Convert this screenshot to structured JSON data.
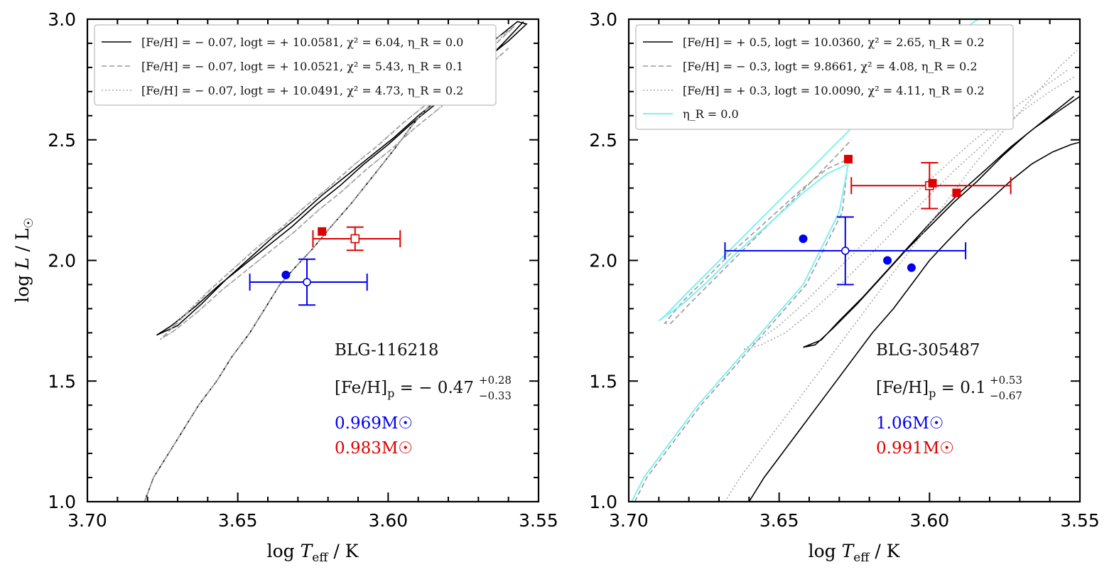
{
  "chart_data": [
    {
      "type": "line",
      "panel": "left",
      "xlabel": "log T_eff / K",
      "ylabel": "log L / L☉",
      "xlim": [
        3.7,
        3.55
      ],
      "ylim": [
        1.0,
        3.0
      ],
      "x_ticks": [
        "3.70",
        "3.65",
        "3.60",
        "3.55"
      ],
      "y_ticks": [
        "1.0",
        "1.5",
        "2.0",
        "2.5",
        "3.0"
      ],
      "legend": [
        {
          "label": "[Fe/H] = − 0.07, logt = + 10.0581, χ² = 6.04, η_R = 0.0",
          "style": "solid",
          "color": "#000000"
        },
        {
          "label": "[Fe/H] = − 0.07, logt = + 10.0521, χ² = 5.43, η_R = 0.1",
          "style": "dashed",
          "color": "#999999"
        },
        {
          "label": "[Fe/H] = − 0.07, logt = + 10.0491, χ² = 4.73, η_R = 0.2",
          "style": "dotted",
          "color": "#aaaaaa"
        }
      ],
      "series": [
        {
          "name": "eta0.0",
          "style": "solid",
          "color": "#000000",
          "x": [
            3.681,
            3.678,
            3.673,
            3.668,
            3.663,
            3.657,
            3.652,
            3.646,
            3.641,
            3.636,
            3.631,
            3.625,
            3.619,
            3.612,
            3.605,
            3.598,
            3.592,
            3.585,
            3.578,
            3.571,
            3.564,
            3.557,
            3.554,
            3.56,
            3.567,
            3.574,
            3.582,
            3.59,
            3.598,
            3.606,
            3.614,
            3.622,
            3.63,
            3.638,
            3.646,
            3.654,
            3.662,
            3.67,
            3.677,
            3.672,
            3.664,
            3.656,
            3.648,
            3.64,
            3.632,
            3.624,
            3.616,
            3.608,
            3.6,
            3.592,
            3.584,
            3.576,
            3.568,
            3.561,
            3.555
          ],
          "y": [
            1.0,
            1.1,
            1.2,
            1.3,
            1.4,
            1.5,
            1.6,
            1.7,
            1.8,
            1.9,
            1.97,
            2.05,
            2.14,
            2.24,
            2.35,
            2.46,
            2.56,
            2.66,
            2.75,
            2.84,
            2.92,
            2.99,
            2.98,
            2.91,
            2.84,
            2.76,
            2.68,
            2.6,
            2.51,
            2.43,
            2.35,
            2.27,
            2.18,
            2.1,
            2.01,
            1.92,
            1.82,
            1.73,
            1.69,
            1.73,
            1.81,
            1.9,
            1.98,
            2.06,
            2.14,
            2.23,
            2.31,
            2.4,
            2.48,
            2.57,
            2.65,
            2.74,
            2.82,
            2.91,
            2.99
          ]
        },
        {
          "name": "eta0.1",
          "style": "dashed",
          "color": "#999999",
          "x": [
            3.681,
            3.678,
            3.673,
            3.668,
            3.663,
            3.657,
            3.652,
            3.646,
            3.641,
            3.636,
            3.631,
            3.625,
            3.619,
            3.612,
            3.605,
            3.598,
            3.592,
            3.585,
            3.578,
            3.571,
            3.564,
            3.558,
            3.564,
            3.571,
            3.579,
            3.587,
            3.595,
            3.603,
            3.611,
            3.619,
            3.627,
            3.635,
            3.643,
            3.651,
            3.659,
            3.667,
            3.675,
            3.671,
            3.663,
            3.655,
            3.647,
            3.639,
            3.631,
            3.623,
            3.615,
            3.607,
            3.599,
            3.591,
            3.583,
            3.575,
            3.567,
            3.56
          ],
          "y": [
            1.0,
            1.1,
            1.2,
            1.3,
            1.4,
            1.5,
            1.6,
            1.7,
            1.8,
            1.9,
            1.97,
            2.05,
            2.14,
            2.24,
            2.35,
            2.46,
            2.56,
            2.66,
            2.75,
            2.84,
            2.92,
            2.97,
            2.9,
            2.82,
            2.74,
            2.65,
            2.57,
            2.48,
            2.4,
            2.31,
            2.23,
            2.14,
            2.06,
            1.97,
            1.88,
            1.78,
            1.68,
            1.71,
            1.79,
            1.88,
            1.96,
            2.04,
            2.12,
            2.21,
            2.29,
            2.38,
            2.46,
            2.55,
            2.63,
            2.72,
            2.8,
            2.88
          ]
        },
        {
          "name": "eta0.2",
          "style": "dotted",
          "color": "#aaaaaa",
          "x": [
            3.681,
            3.678,
            3.673,
            3.668,
            3.663,
            3.657,
            3.652,
            3.646,
            3.641,
            3.636,
            3.631,
            3.625,
            3.619,
            3.612,
            3.605,
            3.598,
            3.592,
            3.585,
            3.578,
            3.571,
            3.564,
            3.56,
            3.566,
            3.573,
            3.581,
            3.589,
            3.597,
            3.605,
            3.613,
            3.621,
            3.629,
            3.637,
            3.645,
            3.653,
            3.661,
            3.669,
            3.676,
            3.672,
            3.664,
            3.656,
            3.648,
            3.64,
            3.632,
            3.624,
            3.616,
            3.608,
            3.6,
            3.592,
            3.584,
            3.576,
            3.568,
            3.562
          ],
          "y": [
            1.0,
            1.1,
            1.2,
            1.3,
            1.4,
            1.5,
            1.6,
            1.7,
            1.8,
            1.9,
            1.97,
            2.05,
            2.14,
            2.24,
            2.35,
            2.46,
            2.56,
            2.66,
            2.75,
            2.84,
            2.92,
            2.95,
            2.88,
            2.8,
            2.72,
            2.63,
            2.55,
            2.46,
            2.38,
            2.29,
            2.21,
            2.12,
            2.04,
            1.95,
            1.86,
            1.76,
            1.67,
            1.7,
            1.78,
            1.87,
            1.95,
            2.03,
            2.11,
            2.2,
            2.28,
            2.37,
            2.45,
            2.54,
            2.62,
            2.71,
            2.79,
            2.86
          ]
        }
      ],
      "points": [
        {
          "name": "blue-model",
          "x": 3.634,
          "y": 1.94,
          "color": "#0000ee",
          "marker": "filled-circle"
        },
        {
          "name": "red-model",
          "x": 3.622,
          "y": 2.12,
          "color": "#dd0000",
          "marker": "filled-square"
        }
      ],
      "errorbars": [
        {
          "name": "blue-observed",
          "x": 3.627,
          "y": 1.91,
          "xerr": [
            0.019,
            0.02
          ],
          "yerr": [
            0.095,
            0.095
          ],
          "color": "#0000ee",
          "marker": "open-circle"
        },
        {
          "name": "red-observed",
          "x": 3.611,
          "y": 2.09,
          "xerr": [
            0.014,
            0.015
          ],
          "yerr": [
            0.048,
            0.048
          ],
          "color": "#dd0000",
          "marker": "open-square"
        }
      ],
      "annotations": {
        "star": "BLG-116218",
        "feh_base": "[Fe/H]",
        "feh_sub": "p",
        "feh_value": " = − 0.47",
        "feh_sup": "+0.28",
        "feh_inf": "−0.33",
        "mass_blue": "0.969M☉",
        "mass_red": "0.983M☉"
      }
    },
    {
      "type": "line",
      "panel": "right",
      "xlabel": "log T_eff / K",
      "ylabel": "",
      "xlim": [
        3.7,
        3.55
      ],
      "ylim": [
        1.0,
        3.0
      ],
      "x_ticks": [
        "3.70",
        "3.65",
        "3.60",
        "3.55"
      ],
      "y_ticks": [
        "1.0",
        "1.5",
        "2.0",
        "2.5",
        "3.0"
      ],
      "legend": [
        {
          "label": "[Fe/H] = + 0.5, logt = 10.0360, χ² = 2.65, η_R = 0.2",
          "style": "solid",
          "color": "#000000"
        },
        {
          "label": "[Fe/H] = − 0.3, logt =  9.8661, χ² = 4.08, η_R = 0.2",
          "style": "dashed",
          "color": "#999999"
        },
        {
          "label": "[Fe/H] = + 0.3, logt = 10.0090, χ² = 4.11, η_R = 0.2",
          "style": "dotted",
          "color": "#aaaaaa"
        },
        {
          "label": "η_R = 0.0",
          "style": "solid",
          "color": "#7ff0f0"
        }
      ],
      "series": [
        {
          "name": "feh+0.5",
          "style": "solid",
          "color": "#000000",
          "x": [
            3.66,
            3.655,
            3.649,
            3.643,
            3.637,
            3.631,
            3.625,
            3.619,
            3.612,
            3.606,
            3.6,
            3.594,
            3.587,
            3.58,
            3.573,
            3.566,
            3.559,
            3.553,
            3.55,
            null,
            3.55,
            3.557,
            3.565,
            3.573,
            3.581,
            3.59,
            3.598,
            3.606,
            3.614,
            3.622,
            3.63,
            3.636,
            3.642,
            3.638,
            3.632,
            3.624,
            3.616,
            3.608,
            3.6,
            3.592,
            3.584,
            3.576,
            3.568,
            3.56,
            3.552
          ],
          "y": [
            1.0,
            1.1,
            1.2,
            1.3,
            1.4,
            1.5,
            1.6,
            1.7,
            1.8,
            1.9,
            2.0,
            2.08,
            2.17,
            2.25,
            2.33,
            2.4,
            2.45,
            2.48,
            2.49,
            null,
            2.68,
            2.62,
            2.55,
            2.47,
            2.38,
            2.28,
            2.18,
            2.07,
            1.96,
            1.85,
            1.75,
            1.67,
            1.64,
            1.65,
            1.72,
            1.82,
            1.93,
            2.04,
            2.14,
            2.24,
            2.33,
            2.43,
            2.52,
            2.6,
            2.68
          ]
        },
        {
          "name": "feh-0.3",
          "style": "dashed",
          "color": "#999999",
          "x": [
            3.698,
            3.694,
            3.688,
            3.682,
            3.676,
            3.669,
            3.662,
            3.655,
            3.648,
            3.641,
            3.635,
            3.629,
            3.627,
            3.634,
            3.642,
            3.65,
            3.658,
            3.666,
            3.674,
            3.682,
            3.688,
            3.686,
            3.679,
            3.671,
            3.663,
            3.655,
            3.647,
            3.639,
            3.632,
            3.626
          ],
          "y": [
            1.0,
            1.1,
            1.2,
            1.3,
            1.4,
            1.5,
            1.6,
            1.7,
            1.8,
            1.9,
            2.05,
            2.2,
            2.42,
            2.38,
            2.3,
            2.21,
            2.12,
            2.03,
            1.93,
            1.83,
            1.74,
            1.74,
            1.83,
            1.93,
            2.03,
            2.13,
            2.23,
            2.33,
            2.42,
            2.5
          ]
        },
        {
          "name": "feh+0.3",
          "style": "dotted",
          "color": "#aaaaaa",
          "x": [
            3.668,
            3.663,
            3.657,
            3.651,
            3.645,
            3.639,
            3.633,
            3.627,
            3.621,
            3.615,
            3.609,
            3.603,
            3.597,
            3.591,
            3.585,
            3.578,
            3.571,
            3.564,
            3.557,
            3.551,
            null,
            3.552,
            3.56,
            3.568,
            3.576,
            3.584,
            3.592,
            3.6,
            3.608,
            3.616,
            3.624,
            3.632,
            3.64,
            3.648,
            3.656,
            3.662,
            3.658,
            3.65,
            3.642,
            3.634,
            3.626,
            3.618,
            3.61,
            3.602,
            3.594,
            3.586,
            3.578,
            3.57,
            3.562,
            3.554
          ],
          "y": [
            1.0,
            1.1,
            1.2,
            1.3,
            1.4,
            1.5,
            1.6,
            1.7,
            1.8,
            1.9,
            2.0,
            2.1,
            2.2,
            2.3,
            2.4,
            2.5,
            2.6,
            2.7,
            2.8,
            2.87,
            null,
            2.76,
            2.7,
            2.63,
            2.55,
            2.46,
            2.37,
            2.27,
            2.17,
            2.07,
            1.97,
            1.87,
            1.78,
            1.7,
            1.65,
            1.63,
            1.66,
            1.73,
            1.82,
            1.92,
            2.02,
            2.12,
            2.22,
            2.31,
            2.4,
            2.49,
            2.57,
            2.65,
            2.72,
            2.79
          ]
        },
        {
          "name": "eta0.0-cyan",
          "style": "solid",
          "color": "#7ff0f0",
          "x": [
            3.699,
            3.695,
            3.689,
            3.683,
            3.677,
            3.67,
            3.663,
            3.656,
            3.649,
            3.642,
            3.636,
            3.63,
            3.627,
            3.634,
            3.642,
            3.65,
            3.658,
            3.666,
            3.674,
            3.682,
            3.69,
            3.688,
            3.681,
            3.673,
            3.665,
            3.657,
            3.649,
            3.641,
            3.633,
            3.625,
            3.617,
            3.609,
            3.601,
            3.593,
            3.585,
            3.578
          ],
          "y": [
            1.0,
            1.1,
            1.2,
            1.3,
            1.4,
            1.5,
            1.6,
            1.7,
            1.8,
            1.9,
            2.05,
            2.2,
            2.4,
            2.36,
            2.28,
            2.19,
            2.1,
            2.01,
            1.91,
            1.82,
            1.75,
            1.77,
            1.86,
            1.96,
            2.06,
            2.16,
            2.26,
            2.36,
            2.46,
            2.56,
            2.66,
            2.75,
            2.84,
            2.92,
            2.99,
            3.05
          ]
        }
      ],
      "points": [
        {
          "name": "blue-model-1",
          "x": 3.642,
          "y": 2.09,
          "color": "#0000ee",
          "marker": "filled-circle"
        },
        {
          "name": "blue-model-2",
          "x": 3.614,
          "y": 2.0,
          "color": "#0000ee",
          "marker": "filled-circle"
        },
        {
          "name": "blue-model-3",
          "x": 3.606,
          "y": 1.97,
          "color": "#0000ee",
          "marker": "filled-circle"
        },
        {
          "name": "red-model-1",
          "x": 3.627,
          "y": 2.42,
          "color": "#dd0000",
          "marker": "filled-square"
        },
        {
          "name": "red-model-2",
          "x": 3.599,
          "y": 2.32,
          "color": "#dd0000",
          "marker": "filled-square"
        },
        {
          "name": "red-model-3",
          "x": 3.591,
          "y": 2.28,
          "color": "#dd0000",
          "marker": "filled-square"
        }
      ],
      "errorbars": [
        {
          "name": "blue-observed",
          "x": 3.628,
          "y": 2.04,
          "xerr": [
            0.04,
            0.04
          ],
          "yerr": [
            0.14,
            0.14
          ],
          "color": "#0000ee",
          "marker": "open-circle"
        },
        {
          "name": "red-observed",
          "x": 3.6,
          "y": 2.31,
          "xerr": [
            0.026,
            0.027
          ],
          "yerr": [
            0.095,
            0.095
          ],
          "color": "#dd0000",
          "marker": "open-square"
        }
      ],
      "annotations": {
        "star": "BLG-305487",
        "feh_base": "[Fe/H]",
        "feh_sub": "p",
        "feh_value": " = 0.1",
        "feh_sup": "+0.53",
        "feh_inf": "−0.67",
        "mass_blue": "1.06M☉",
        "mass_red": "0.991M☉"
      }
    }
  ]
}
